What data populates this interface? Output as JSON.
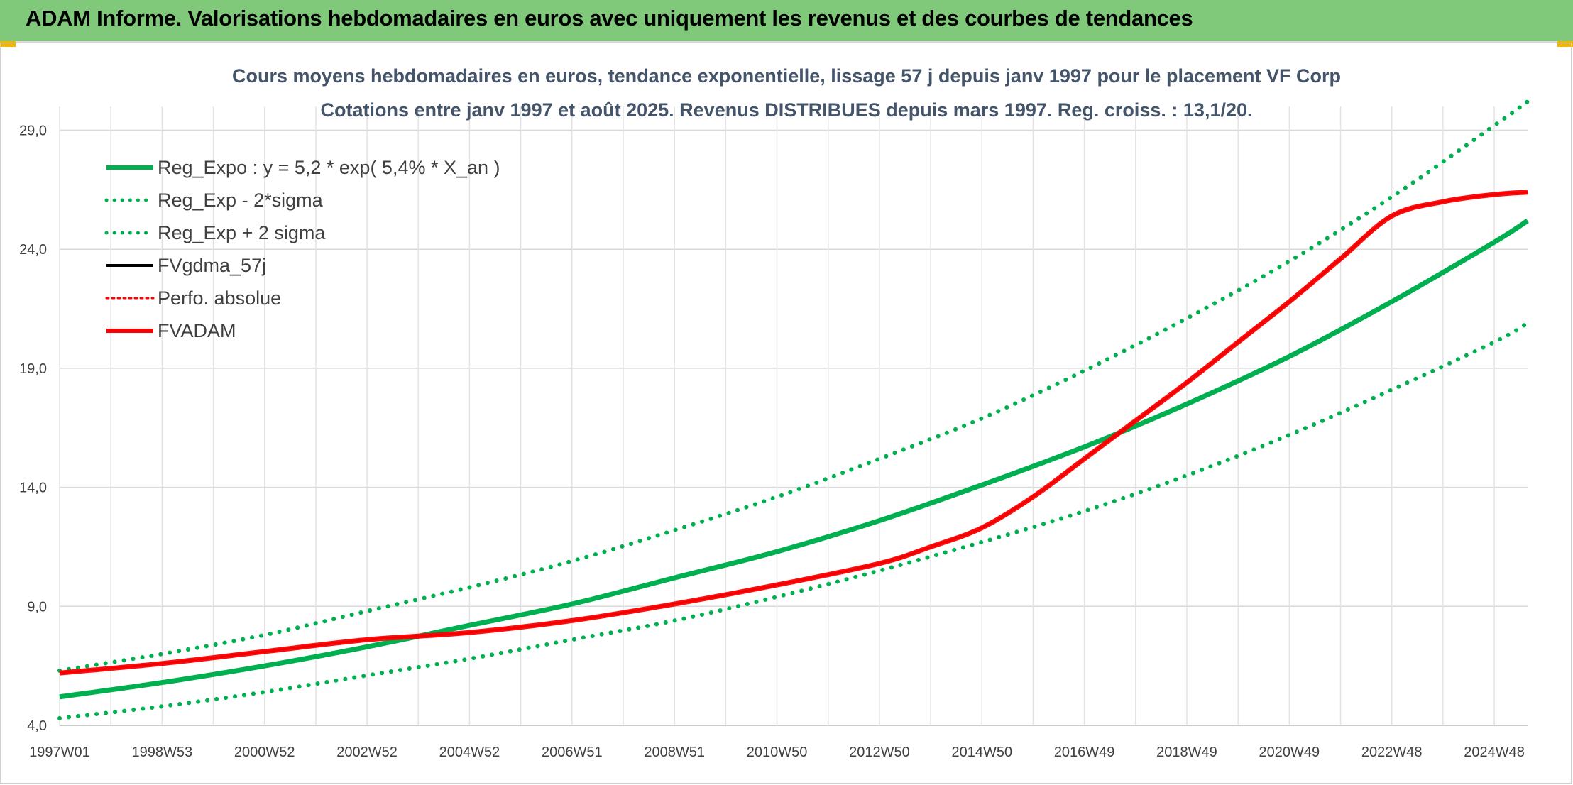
{
  "banner": {
    "title": "ADAM Informe. Valorisations hebdomadaires en euros avec uniquement les revenus et des courbes de tendances",
    "color": "#80c97a"
  },
  "chart_data": {
    "type": "line",
    "title": "Cours moyens hebdomadaires en euros, tendance exponentielle, lissage 57 j depuis janv 1997 pour le placement VF Corp",
    "subtitle": "Cotations entre janv 1997 et août 2025. Revenus DISTRIBUES depuis mars 1997. Reg. croiss. : 13,1/20.",
    "xlabel": "",
    "ylabel": "",
    "ylim": [
      4.0,
      30.0
    ],
    "y_ticks": [
      "4,0",
      "9,0",
      "14,0",
      "19,0",
      "24,0",
      "29,0"
    ],
    "y_tick_values": [
      4.0,
      9.0,
      14.0,
      19.0,
      24.0,
      29.0
    ],
    "x_range": [
      1997.0,
      2025.65
    ],
    "x_ticks": [
      "1997W01",
      "1998W53",
      "2000W52",
      "2002W52",
      "2004W52",
      "2006W51",
      "2008W51",
      "2010W50",
      "2012W50",
      "2014W50",
      "2016W49",
      "2018W49",
      "2020W49",
      "2022W48",
      "2024W48"
    ],
    "x_tick_values": [
      1997.0,
      1999.0,
      2001.0,
      2003.0,
      2005.0,
      2007.0,
      2009.0,
      2011.0,
      2013.0,
      2015.0,
      2017.0,
      2019.0,
      2021.0,
      2023.0,
      2025.0
    ],
    "grid": true,
    "legend_position": "top-left",
    "series": [
      {
        "name": "Reg_Expo : y = 5,2 * exp( 5,4% *  X_an )",
        "color": "#00b050",
        "style": "solid",
        "x": [
          1997.0,
          1999.0,
          2001.0,
          2003.0,
          2005.0,
          2007.0,
          2009.0,
          2011.0,
          2013.0,
          2015.0,
          2017.0,
          2019.0,
          2021.0,
          2023.0,
          2025.0,
          2025.65
        ],
        "y": [
          5.2,
          5.8,
          6.5,
          7.3,
          8.2,
          9.1,
          10.2,
          11.3,
          12.6,
          14.1,
          15.7,
          17.5,
          19.5,
          21.8,
          24.3,
          25.2
        ]
      },
      {
        "name": "Reg_Exp - 2*sigma",
        "color": "#00b050",
        "style": "dotted",
        "x": [
          1997.0,
          1999.0,
          2001.0,
          2003.0,
          2005.0,
          2007.0,
          2009.0,
          2011.0,
          2013.0,
          2015.0,
          2017.0,
          2019.0,
          2021.0,
          2023.0,
          2025.0,
          2025.65
        ],
        "y": [
          4.3,
          4.8,
          5.4,
          6.1,
          6.8,
          7.6,
          8.4,
          9.4,
          10.5,
          11.7,
          13.0,
          14.5,
          16.2,
          18.1,
          20.1,
          20.9
        ]
      },
      {
        "name": "Reg_Exp + 2 sigma",
        "color": "#00b050",
        "style": "dotted",
        "x": [
          1997.0,
          1999.0,
          2001.0,
          2003.0,
          2005.0,
          2007.0,
          2009.0,
          2011.0,
          2013.0,
          2015.0,
          2017.0,
          2019.0,
          2021.0,
          2023.0,
          2025.0,
          2025.65
        ],
        "y": [
          6.3,
          7.0,
          7.8,
          8.8,
          9.8,
          10.9,
          12.2,
          13.6,
          15.2,
          16.9,
          18.9,
          21.1,
          23.5,
          26.2,
          29.2,
          30.2
        ]
      },
      {
        "name": "FVgdma_57j",
        "color": "#000000",
        "style": "solid",
        "x": [
          1997.0,
          1999.0,
          2001.0,
          2003.0,
          2005.0,
          2007.0,
          2009.0,
          2011.0,
          2013.0,
          2014.0,
          2015.0,
          2016.0,
          2017.0,
          2018.0,
          2019.0,
          2020.0,
          2021.0,
          2022.0,
          2023.0,
          2024.0,
          2025.0,
          2025.65
        ],
        "y": [
          6.2,
          6.6,
          7.1,
          7.6,
          7.9,
          8.4,
          9.1,
          9.9,
          10.8,
          11.5,
          12.3,
          13.6,
          15.2,
          16.8,
          18.4,
          20.1,
          21.8,
          23.6,
          25.4,
          26.0,
          26.3,
          26.4
        ]
      },
      {
        "name": "Perfo. absolue",
        "color": "#ff0000",
        "style": "dotted",
        "x": [],
        "y": []
      },
      {
        "name": "FVADAM",
        "color": "#ff0000",
        "style": "solid",
        "x": [
          1997.0,
          1999.0,
          2001.0,
          2003.0,
          2005.0,
          2007.0,
          2009.0,
          2011.0,
          2013.0,
          2014.0,
          2015.0,
          2016.0,
          2017.0,
          2018.0,
          2019.0,
          2020.0,
          2021.0,
          2022.0,
          2023.0,
          2024.0,
          2025.0,
          2025.65
        ],
        "y": [
          6.2,
          6.6,
          7.1,
          7.6,
          7.9,
          8.4,
          9.1,
          9.9,
          10.8,
          11.5,
          12.3,
          13.6,
          15.2,
          16.8,
          18.4,
          20.1,
          21.8,
          23.6,
          25.4,
          26.0,
          26.3,
          26.4
        ]
      }
    ]
  }
}
